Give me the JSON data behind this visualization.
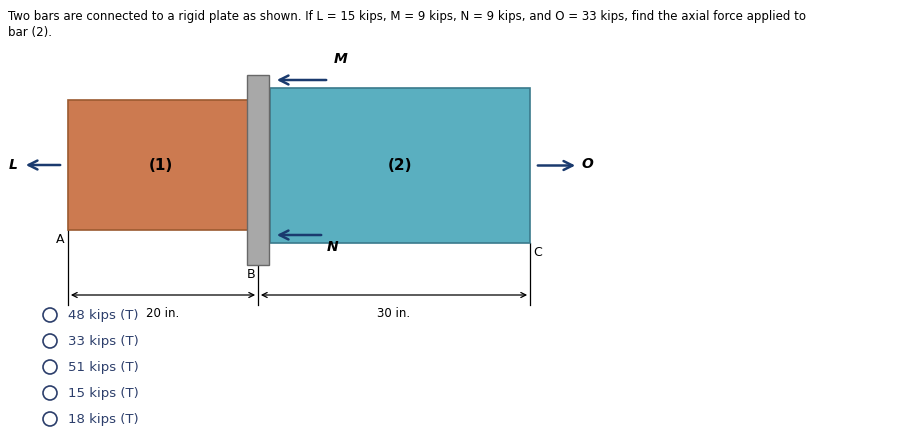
{
  "title_line1": "Two bars are connected to a rigid plate as shown. If L = 15 kips, M = 9 kips, N = 9 kips, and O = 33 kips, find the axial force applied to",
  "title_line2": "bar (2).",
  "bar1_color": "#CC7A50",
  "bar1_edge": "#9B5A30",
  "bar2_color": "#5AAFC0",
  "bar2_edge": "#3A7A8C",
  "plate_color": "#A8A8A8",
  "plate_edge": "#686868",
  "arrow_color": "#1A3A6E",
  "label1": "(1)",
  "label2": "(2)",
  "label_L": "L",
  "label_M": "M",
  "label_N": "N",
  "label_O": "O",
  "label_A": "A",
  "label_B": "B",
  "label_C": "C",
  "dim1": "20 in.",
  "dim2": "30 in.",
  "choices": [
    "48 kips (T)",
    "33 kips (T)",
    "51 kips (T)",
    "15 kips (T)",
    "18 kips (T)"
  ],
  "choice_color": "#2C3E6B",
  "fig_bg": "#ffffff",
  "text_color": "#000000"
}
